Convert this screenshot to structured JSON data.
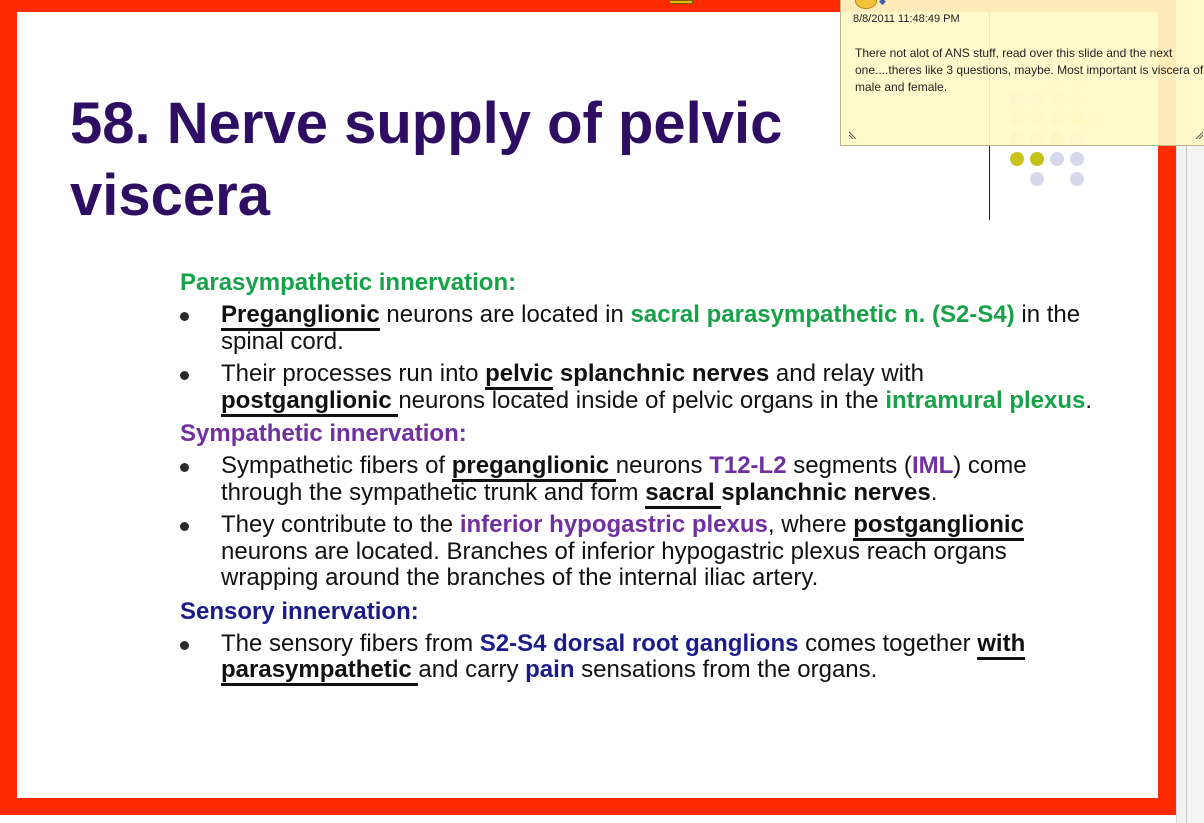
{
  "slide": {
    "title": "58. Nerve supply of pelvic viscera",
    "sections": [
      {
        "heading": "Parasympathetic innervation:",
        "bullets": [
          {
            "p1": "Preganglionic",
            "p2": " neurons are located in ",
            "p3": "sacral parasympathetic  n. (S2-S4)",
            "p4": " in the spinal cord."
          },
          {
            "p1": "Their processes run into ",
            "p2": "pelvic",
            "p3": " splanchnic nerves",
            "p4": " and relay with ",
            "p5": "postganglionic ",
            "p6": "neurons located inside of pelvic organs in the ",
            "p7": "intramural plexus",
            "p8": "."
          }
        ]
      },
      {
        "heading": "Sympathetic  innervation:",
        "bullets": [
          {
            "p1": "Sympathetic fibers of ",
            "p2": "preganglionic ",
            "p3": "neurons ",
            "p4": "T12-L2",
            "p5": " segments (",
            "p6": "IML",
            "p7": ") come through the sympathetic trunk and form ",
            "p8": "sacral ",
            "p9": "splanchnic nerves",
            "p10": "."
          },
          {
            "p1": "They contribute to the ",
            "p2": "inferior hypogastric plexus",
            "p3": ", where ",
            "p4": "postganglionic",
            "p5": " neurons are located. Branches of inferior hypogastric plexus reach organs wrapping around the branches of the internal iliac artery."
          }
        ]
      },
      {
        "heading": "Sensory innervation:",
        "bullets": [
          {
            "p1": "The sensory fibers from ",
            "p2": "S2-S4 dorsal root ganglions",
            "p3": " comes together ",
            "p4": "with parasympathetic ",
            "p5": "and carry ",
            "p6": "pain",
            "p7": " sensations from the organs."
          }
        ]
      }
    ]
  },
  "comment": {
    "date": "8/8/2011 11:48:49 PM",
    "text": "There not alot of ANS stuff, read over this slide and the next one....theres like 3 questions, maybe. Most important is viscera of male and female."
  },
  "colors": {
    "frame": "#ff2a00",
    "title": "#2e0e63",
    "green": "#17a24a",
    "purple": "#7030a0",
    "navy": "#1b1b8a",
    "note": "#fffac8"
  }
}
